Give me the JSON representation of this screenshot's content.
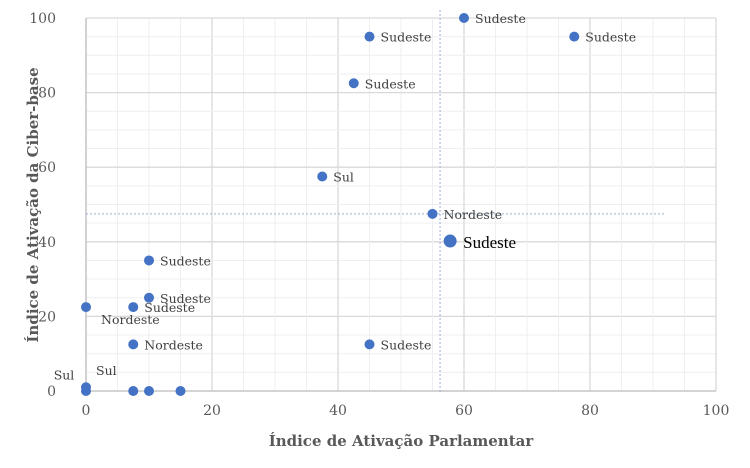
{
  "chart_data": {
    "type": "scatter",
    "title": "",
    "xlabel": "Índice de Ativação Parlamentar",
    "ylabel": "Índice  de Ativação da Ciber-base",
    "xlim": [
      0,
      100
    ],
    "ylim": [
      0,
      100
    ],
    "xticks": [
      "0",
      "20",
      "40",
      "60",
      "80",
      "100"
    ],
    "yticks": [
      "0",
      "20",
      "40",
      "60",
      "80",
      "100"
    ],
    "grid": true,
    "color": "#4472C4",
    "reference_lines": {
      "x": 56.2,
      "y": 47.5
    },
    "points": [
      {
        "x": 60,
        "y": 100,
        "label": "Sudeste"
      },
      {
        "x": 45,
        "y": 95,
        "label": "Sudeste"
      },
      {
        "x": 77.5,
        "y": 95,
        "label": "Sudeste"
      },
      {
        "x": 42.5,
        "y": 82.5,
        "label": "Sudeste"
      },
      {
        "x": 37.5,
        "y": 57.5,
        "label": "Sul"
      },
      {
        "x": 55,
        "y": 47.5,
        "label": "Nordeste"
      },
      {
        "x": 57.8,
        "y": 40.2,
        "label": "Sudeste",
        "highlight": true
      },
      {
        "x": 10,
        "y": 35,
        "label": "Sudeste"
      },
      {
        "x": 10,
        "y": 25,
        "label": "Sudeste"
      },
      {
        "x": 0,
        "y": 22.5,
        "label": "Nordeste",
        "pos": "below"
      },
      {
        "x": 7.5,
        "y": 22.5,
        "label": "Sudeste"
      },
      {
        "x": 7.5,
        "y": 12.5,
        "label": "Nordeste"
      },
      {
        "x": 45,
        "y": 12.5,
        "label": "Sudeste"
      },
      {
        "x": 0,
        "y": 1,
        "label": "Sul",
        "pos": "aboveleft"
      },
      {
        "x": 0,
        "y": 0,
        "label": "Sul",
        "pos": "aboveright"
      },
      {
        "x": 7.5,
        "y": 0,
        "label": ""
      },
      {
        "x": 10,
        "y": 0,
        "label": ""
      },
      {
        "x": 15,
        "y": 0,
        "label": ""
      }
    ]
  }
}
